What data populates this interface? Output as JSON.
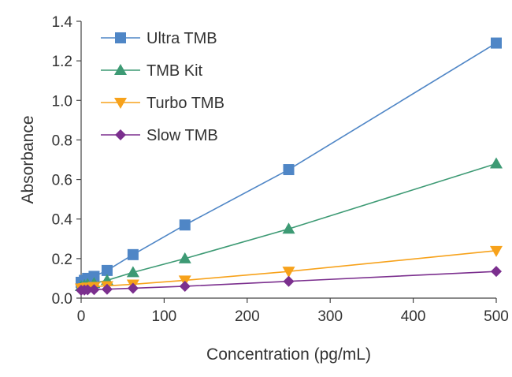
{
  "chart_data": {
    "type": "line",
    "title": "",
    "xlabel": "Concentration (pg/mL)",
    "ylabel": "Absorbance",
    "xlim": [
      0,
      500
    ],
    "ylim": [
      0,
      1.4
    ],
    "x_ticks": [
      "0",
      "100",
      "200",
      "300",
      "400",
      "500"
    ],
    "y_ticks": [
      "0.0",
      "0.2",
      "0.4",
      "0.6",
      "0.8",
      "1.0",
      "1.2",
      "1.4"
    ],
    "grid": false,
    "legend_position": "top-left",
    "x": [
      0,
      3.9,
      7.8,
      15.6,
      31.25,
      62.5,
      125,
      250,
      500
    ],
    "series": [
      {
        "name": "Ultra TMB",
        "marker": "square",
        "color": "#4f86c6",
        "values": [
          0.08,
          0.09,
          0.1,
          0.11,
          0.14,
          0.22,
          0.37,
          0.65,
          1.29
        ]
      },
      {
        "name": "TMB Kit",
        "marker": "triangle-up",
        "color": "#3d9a74",
        "values": [
          0.06,
          0.065,
          0.07,
          0.075,
          0.09,
          0.13,
          0.2,
          0.35,
          0.68
        ]
      },
      {
        "name": "Turbo TMB",
        "marker": "triangle-down",
        "color": "#f7a21b",
        "values": [
          0.05,
          0.052,
          0.055,
          0.058,
          0.062,
          0.07,
          0.09,
          0.135,
          0.24
        ]
      },
      {
        "name": "Slow TMB",
        "marker": "diamond",
        "color": "#7b2f8e",
        "values": [
          0.04,
          0.041,
          0.042,
          0.043,
          0.045,
          0.05,
          0.06,
          0.085,
          0.135
        ]
      }
    ]
  }
}
